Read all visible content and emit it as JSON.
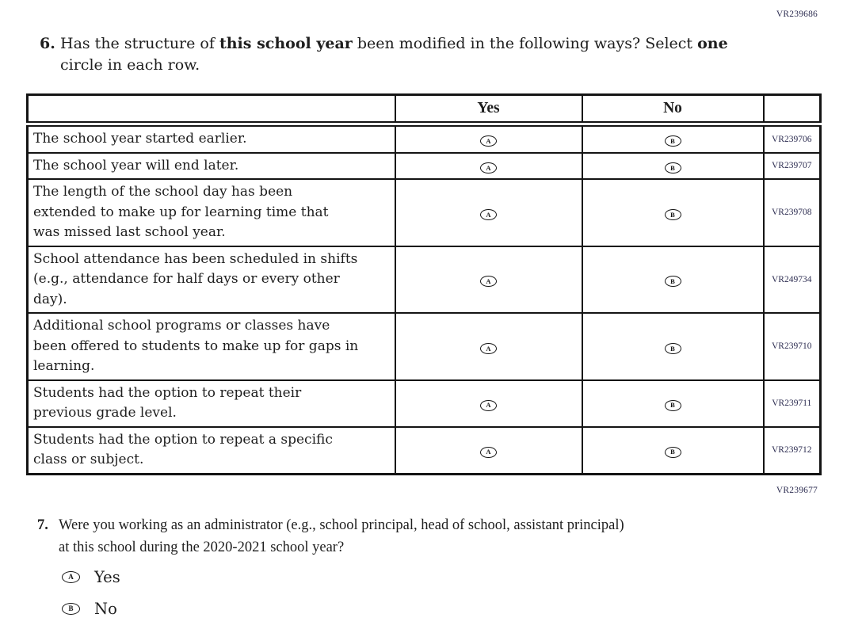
{
  "page": {
    "section6_code": "VR239686",
    "section7_code": "VR239677"
  },
  "question6": {
    "number": "6.",
    "segments": [
      {
        "text": "Has the structure of ",
        "bold": false
      },
      {
        "text": "this school year",
        "bold": true
      },
      {
        "text": " been modified in the following ways? Select ",
        "bold": false
      },
      {
        "text": "one",
        "bold": true
      },
      {
        "text": "\ncircle in each row.",
        "bold": false
      }
    ],
    "table": {
      "headers": {
        "statement": "",
        "yes": "Yes",
        "no": "No",
        "code": ""
      },
      "options": {
        "yes_letter": "A",
        "no_letter": "B"
      },
      "rows": [
        {
          "statement": "The school year started earlier.",
          "code": "VR239706"
        },
        {
          "statement": "The school year will end later.",
          "code": "VR239707"
        },
        {
          "statement": "The length of the school day has been\nextended to make up for learning time that\nwas missed last school year.",
          "code": "VR239708"
        },
        {
          "statement": "School attendance has been scheduled in shifts\n(e.g., attendance for half days or every other\nday).",
          "code": "VR249734"
        },
        {
          "statement": "Additional school programs or classes have\nbeen offered to students to make up for gaps in\nlearning.",
          "code": "VR239710"
        },
        {
          "statement": "Students had the option to repeat their\nprevious grade level.",
          "code": "VR239711"
        },
        {
          "statement": "Students had the option to repeat a specific\nclass or subject.",
          "code": "VR239712"
        }
      ]
    }
  },
  "question7": {
    "number": "7.",
    "text": "Were you working as an administrator (e.g., school principal, head of school, assistant principal)\nat this school during the 2020-2021 school year?",
    "options": [
      {
        "letter": "A",
        "label": "Yes"
      },
      {
        "letter": "B",
        "label": "No"
      }
    ]
  }
}
